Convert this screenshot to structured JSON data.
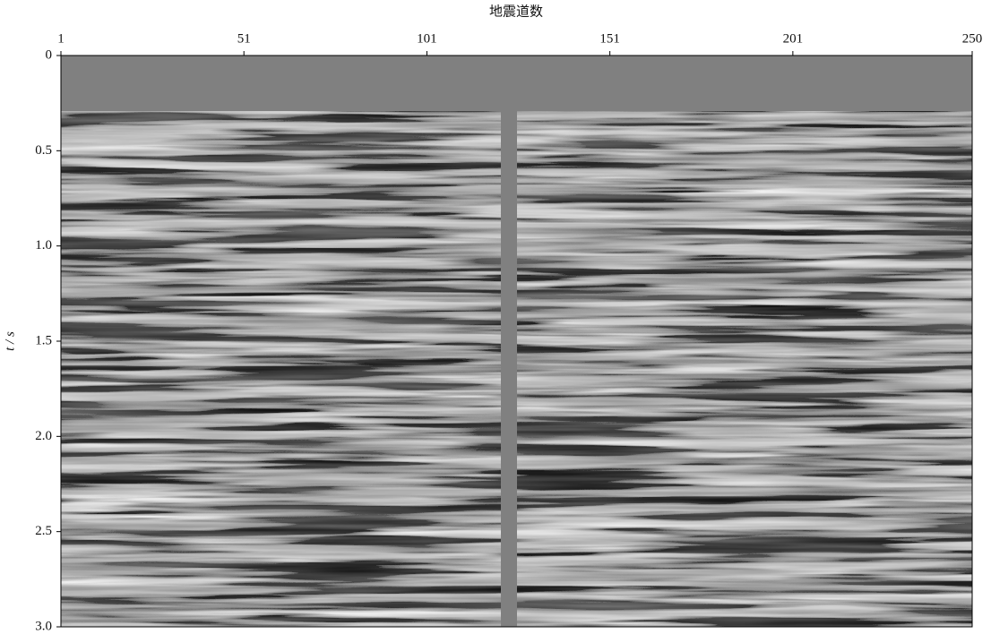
{
  "chart_data": {
    "type": "image",
    "xlabel": "地震道数",
    "ylabel": "t / s",
    "xlim": [
      1,
      250
    ],
    "xticks": [
      1,
      51,
      101,
      151,
      201,
      250
    ],
    "ylim": [
      0,
      3
    ],
    "yticks": [
      0,
      0.5,
      {
        "value": 1,
        "label": "1.0"
      },
      1.5,
      {
        "value": 2,
        "label": "2.0"
      },
      2.5,
      {
        "value": 3,
        "label": "3.0"
      }
    ],
    "y_inverted": true
  }
}
